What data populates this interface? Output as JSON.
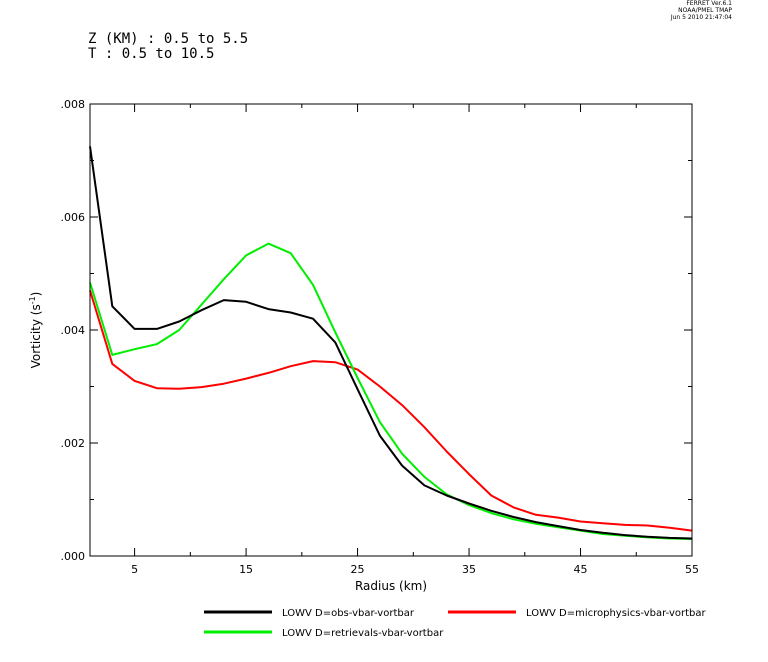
{
  "stamp": {
    "line1": "FERRET Ver.6.1",
    "line2": "NOAA/PMEL TMAP",
    "line3": "Jun 5 2010 21:47:04"
  },
  "header": {
    "z_range": "Z (KM) : 0.5 to 5.5",
    "t_range": "T : 0.5 to 10.5"
  },
  "chart_data": {
    "type": "line",
    "xlabel": "Radius (km)",
    "ylabel": "Vorticity (s",
    "ylabel_sup": "-1",
    "ylabel_close": ")",
    "xlim": [
      1,
      55
    ],
    "ylim": [
      0,
      0.008
    ],
    "xticks": [
      5,
      15,
      25,
      35,
      45,
      55
    ],
    "xtick_labels": [
      "5",
      "15",
      "25",
      "35",
      "45",
      "55"
    ],
    "yticks": [
      0,
      0.002,
      0.004,
      0.006,
      0.008
    ],
    "ytick_labels": [
      ".000",
      ".002",
      ".004",
      ".006",
      ".008"
    ],
    "x": [
      1,
      3,
      5,
      7,
      9,
      11,
      13,
      15,
      17,
      19,
      21,
      23,
      25,
      27,
      29,
      31,
      33,
      35,
      37,
      39,
      41,
      43,
      45,
      47,
      49,
      51,
      53,
      55
    ],
    "series": [
      {
        "name": "LOWV D=obs-vbar-vortbar",
        "color": "#000000",
        "values": [
          0.00725,
          0.00442,
          0.00402,
          0.00402,
          0.00415,
          0.00435,
          0.00453,
          0.0045,
          0.00437,
          0.00431,
          0.0042,
          0.00378,
          0.00295,
          0.00213,
          0.0016,
          0.00125,
          0.00107,
          0.00093,
          0.0008,
          0.00069,
          0.0006,
          0.00053,
          0.00046,
          0.00041,
          0.00037,
          0.00034,
          0.00032,
          0.00031
        ]
      },
      {
        "name": "LOWV D=microphysics-vbar-vortbar",
        "color": "#ff0000",
        "values": [
          0.0047,
          0.0034,
          0.0031,
          0.00297,
          0.00296,
          0.00299,
          0.00305,
          0.00314,
          0.00324,
          0.00336,
          0.00345,
          0.00343,
          0.0033,
          0.003,
          0.00267,
          0.00228,
          0.00185,
          0.00145,
          0.00107,
          0.00086,
          0.00073,
          0.00068,
          0.00061,
          0.00058,
          0.00055,
          0.00054,
          0.0005,
          0.00045
        ]
      },
      {
        "name": "LOWV D=retrievals-vbar-vortbar",
        "color": "#00ee00",
        "values": [
          0.00484,
          0.00356,
          0.00366,
          0.00375,
          0.004,
          0.00445,
          0.0049,
          0.00532,
          0.00553,
          0.00536,
          0.0048,
          0.00396,
          0.00315,
          0.00237,
          0.00181,
          0.0014,
          0.00109,
          0.0009,
          0.00076,
          0.00065,
          0.00057,
          0.00051,
          0.00045,
          0.00039,
          0.00036,
          0.00033,
          0.00031,
          0.0003
        ]
      }
    ],
    "grid": false,
    "legend_position": "bottom"
  }
}
